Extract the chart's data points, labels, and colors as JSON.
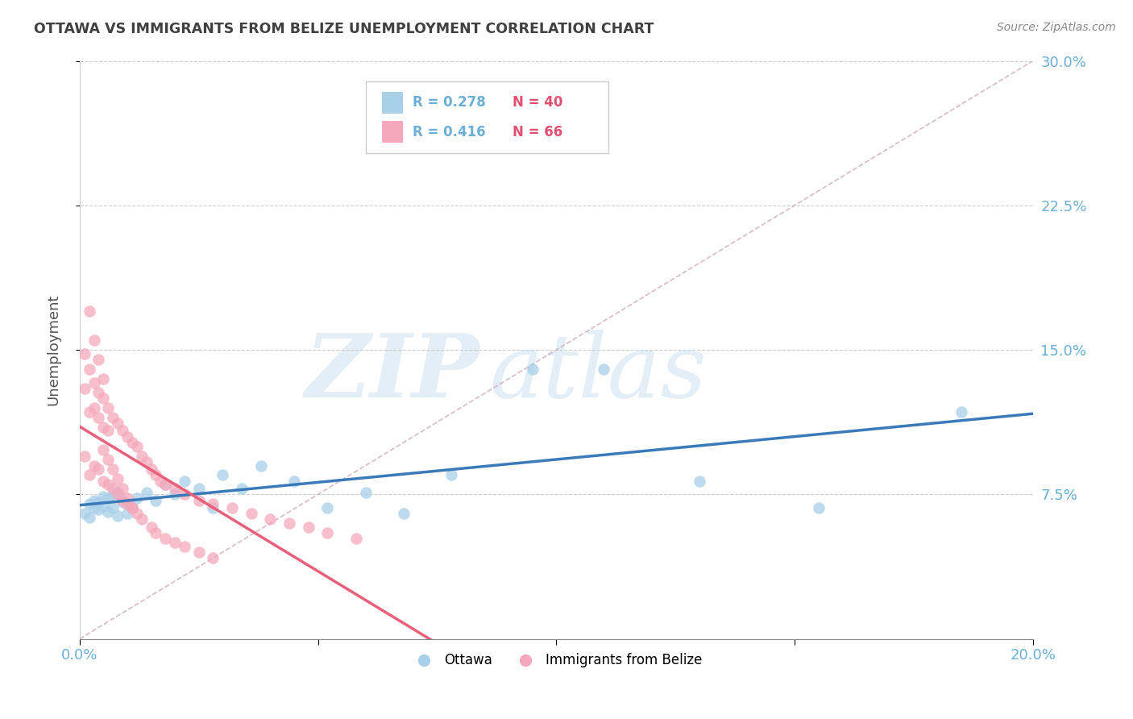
{
  "title": "OTTAWA VS IMMIGRANTS FROM BELIZE UNEMPLOYMENT CORRELATION CHART",
  "source": "Source: ZipAtlas.com",
  "ylabel": "Unemployment",
  "xlim": [
    0.0,
    0.2
  ],
  "ylim": [
    0.0,
    0.3
  ],
  "ottawa_color": "#a8d0e8",
  "belize_color": "#f5a8bc",
  "ottawa_line_color": "#3a7ab8",
  "belize_line_color": "#e8607a",
  "diag_line_color": "#ccaabb",
  "legend_R_ottawa": "R = 0.278",
  "legend_N_ottawa": "N = 40",
  "legend_R_belize": "R = 0.416",
  "legend_N_belize": "N = 66",
  "watermark_zip": "ZIP",
  "watermark_atlas": "atlas",
  "background_color": "#ffffff",
  "grid_color": "#cccccc",
  "title_color": "#404040",
  "tick_label_color": "#6baed6",
  "ottawa_x": [
    0.001,
    0.002,
    0.002,
    0.003,
    0.003,
    0.004,
    0.004,
    0.005,
    0.005,
    0.006,
    0.006,
    0.007,
    0.007,
    0.008,
    0.008,
    0.009,
    0.01,
    0.01,
    0.011,
    0.012,
    0.014,
    0.016,
    0.018,
    0.02,
    0.022,
    0.025,
    0.028,
    0.03,
    0.034,
    0.038,
    0.045,
    0.052,
    0.06,
    0.068,
    0.078,
    0.095,
    0.11,
    0.13,
    0.155,
    0.185
  ],
  "ottawa_y": [
    0.065,
    0.07,
    0.063,
    0.068,
    0.072,
    0.067,
    0.071,
    0.074,
    0.069,
    0.073,
    0.066,
    0.075,
    0.068,
    0.064,
    0.076,
    0.071,
    0.065,
    0.07,
    0.068,
    0.073,
    0.076,
    0.072,
    0.08,
    0.075,
    0.082,
    0.078,
    0.068,
    0.085,
    0.078,
    0.09,
    0.082,
    0.068,
    0.076,
    0.065,
    0.085,
    0.14,
    0.14,
    0.082,
    0.068,
    0.118
  ],
  "belize_x": [
    0.001,
    0.001,
    0.001,
    0.002,
    0.002,
    0.002,
    0.003,
    0.003,
    0.003,
    0.004,
    0.004,
    0.004,
    0.005,
    0.005,
    0.005,
    0.006,
    0.006,
    0.006,
    0.007,
    0.007,
    0.008,
    0.008,
    0.009,
    0.009,
    0.01,
    0.01,
    0.011,
    0.011,
    0.012,
    0.013,
    0.014,
    0.015,
    0.016,
    0.017,
    0.018,
    0.02,
    0.022,
    0.025,
    0.028,
    0.032,
    0.036,
    0.04,
    0.044,
    0.048,
    0.052,
    0.058,
    0.002,
    0.003,
    0.004,
    0.005,
    0.005,
    0.006,
    0.007,
    0.008,
    0.009,
    0.01,
    0.011,
    0.012,
    0.013,
    0.015,
    0.016,
    0.018,
    0.02,
    0.022,
    0.025,
    0.028
  ],
  "belize_y": [
    0.148,
    0.13,
    0.095,
    0.14,
    0.118,
    0.085,
    0.133,
    0.12,
    0.09,
    0.128,
    0.115,
    0.088,
    0.125,
    0.11,
    0.082,
    0.12,
    0.108,
    0.08,
    0.115,
    0.078,
    0.112,
    0.075,
    0.108,
    0.072,
    0.105,
    0.07,
    0.102,
    0.068,
    0.1,
    0.095,
    0.092,
    0.088,
    0.085,
    0.082,
    0.08,
    0.078,
    0.075,
    0.072,
    0.07,
    0.068,
    0.065,
    0.062,
    0.06,
    0.058,
    0.055,
    0.052,
    0.17,
    0.155,
    0.145,
    0.135,
    0.098,
    0.093,
    0.088,
    0.083,
    0.078,
    0.073,
    0.068,
    0.065,
    0.062,
    0.058,
    0.055,
    0.052,
    0.05,
    0.048,
    0.045,
    0.042
  ]
}
